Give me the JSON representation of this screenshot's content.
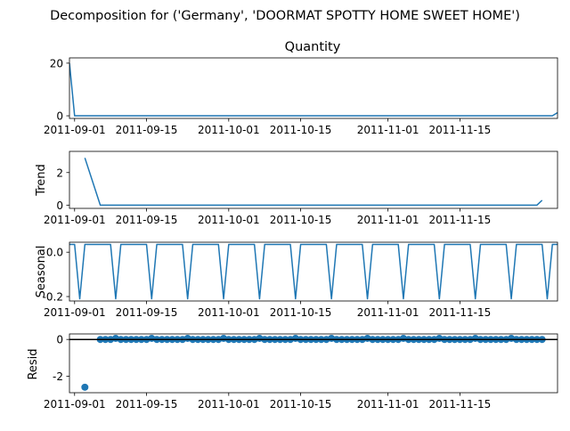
{
  "figure_title": "Decomposition for ('Germany', 'DOORMAT SPOTTY HOME SWEET HOME')",
  "colors": {
    "series": "#1f77b4",
    "axis": "#000000"
  },
  "chart_data": [
    {
      "id": "observed",
      "type": "line",
      "title": "Quantity",
      "ylabel": "",
      "xlim": [
        "2011-08-31",
        "2011-12-04"
      ],
      "ylim": [
        -1,
        22
      ],
      "xticks": [
        "2011-09-01",
        "2011-09-15",
        "2011-10-01",
        "2011-10-15",
        "2011-11-01",
        "2011-11-15"
      ],
      "yticks": [
        0,
        20
      ],
      "series": [
        {
          "x": [
            "2011-08-31",
            "2011-09-01",
            "2011-12-03",
            "2011-12-04"
          ],
          "y": [
            20,
            0,
            0,
            1.2
          ]
        }
      ]
    },
    {
      "id": "trend",
      "type": "line",
      "title": "",
      "ylabel": "Trend",
      "xlim": [
        "2011-08-31",
        "2011-12-04"
      ],
      "ylim": [
        -0.2,
        3.3
      ],
      "xticks": [
        "2011-09-01",
        "2011-09-15",
        "2011-10-01",
        "2011-10-15",
        "2011-11-01",
        "2011-11-15"
      ],
      "yticks": [
        0,
        2
      ],
      "series": [
        {
          "x": [
            "2011-09-03",
            "2011-09-06",
            "2011-11-30",
            "2011-12-01"
          ],
          "y": [
            2.9,
            0,
            0,
            0.3
          ]
        }
      ]
    },
    {
      "id": "seasonal",
      "type": "line",
      "title": "",
      "ylabel": "Seasonal",
      "xlim": [
        "2011-08-31",
        "2011-12-04"
      ],
      "ylim": [
        -0.22,
        0.045
      ],
      "xticks": [
        "2011-09-01",
        "2011-09-15",
        "2011-10-01",
        "2011-10-15",
        "2011-11-01",
        "2011-11-15"
      ],
      "yticks": [
        "-0.2",
        "0.0"
      ],
      "pattern_period_days": 7,
      "pattern_start": "2011-08-31",
      "pattern_values": [
        0.035,
        0.035,
        -0.21,
        0.035,
        0.035,
        0.035,
        0.035
      ],
      "end": "2011-12-04"
    },
    {
      "id": "resid",
      "type": "scatter",
      "title": "",
      "ylabel": "Resid",
      "xlim": [
        "2011-08-31",
        "2011-12-04"
      ],
      "ylim": [
        -2.9,
        0.3
      ],
      "xticks": [
        "2011-09-01",
        "2011-09-15",
        "2011-10-01",
        "2011-10-15",
        "2011-11-01",
        "2011-11-15"
      ],
      "yticks": [
        -2,
        0
      ],
      "zero_line": true,
      "first_point": {
        "x": "2011-09-03",
        "y": -2.6
      },
      "regular_points": {
        "start": "2011-09-06",
        "end": "2011-12-01",
        "value": 0,
        "spike_every_days": 7,
        "spike_first": "2011-09-09",
        "spike_value": 0.06
      }
    }
  ]
}
